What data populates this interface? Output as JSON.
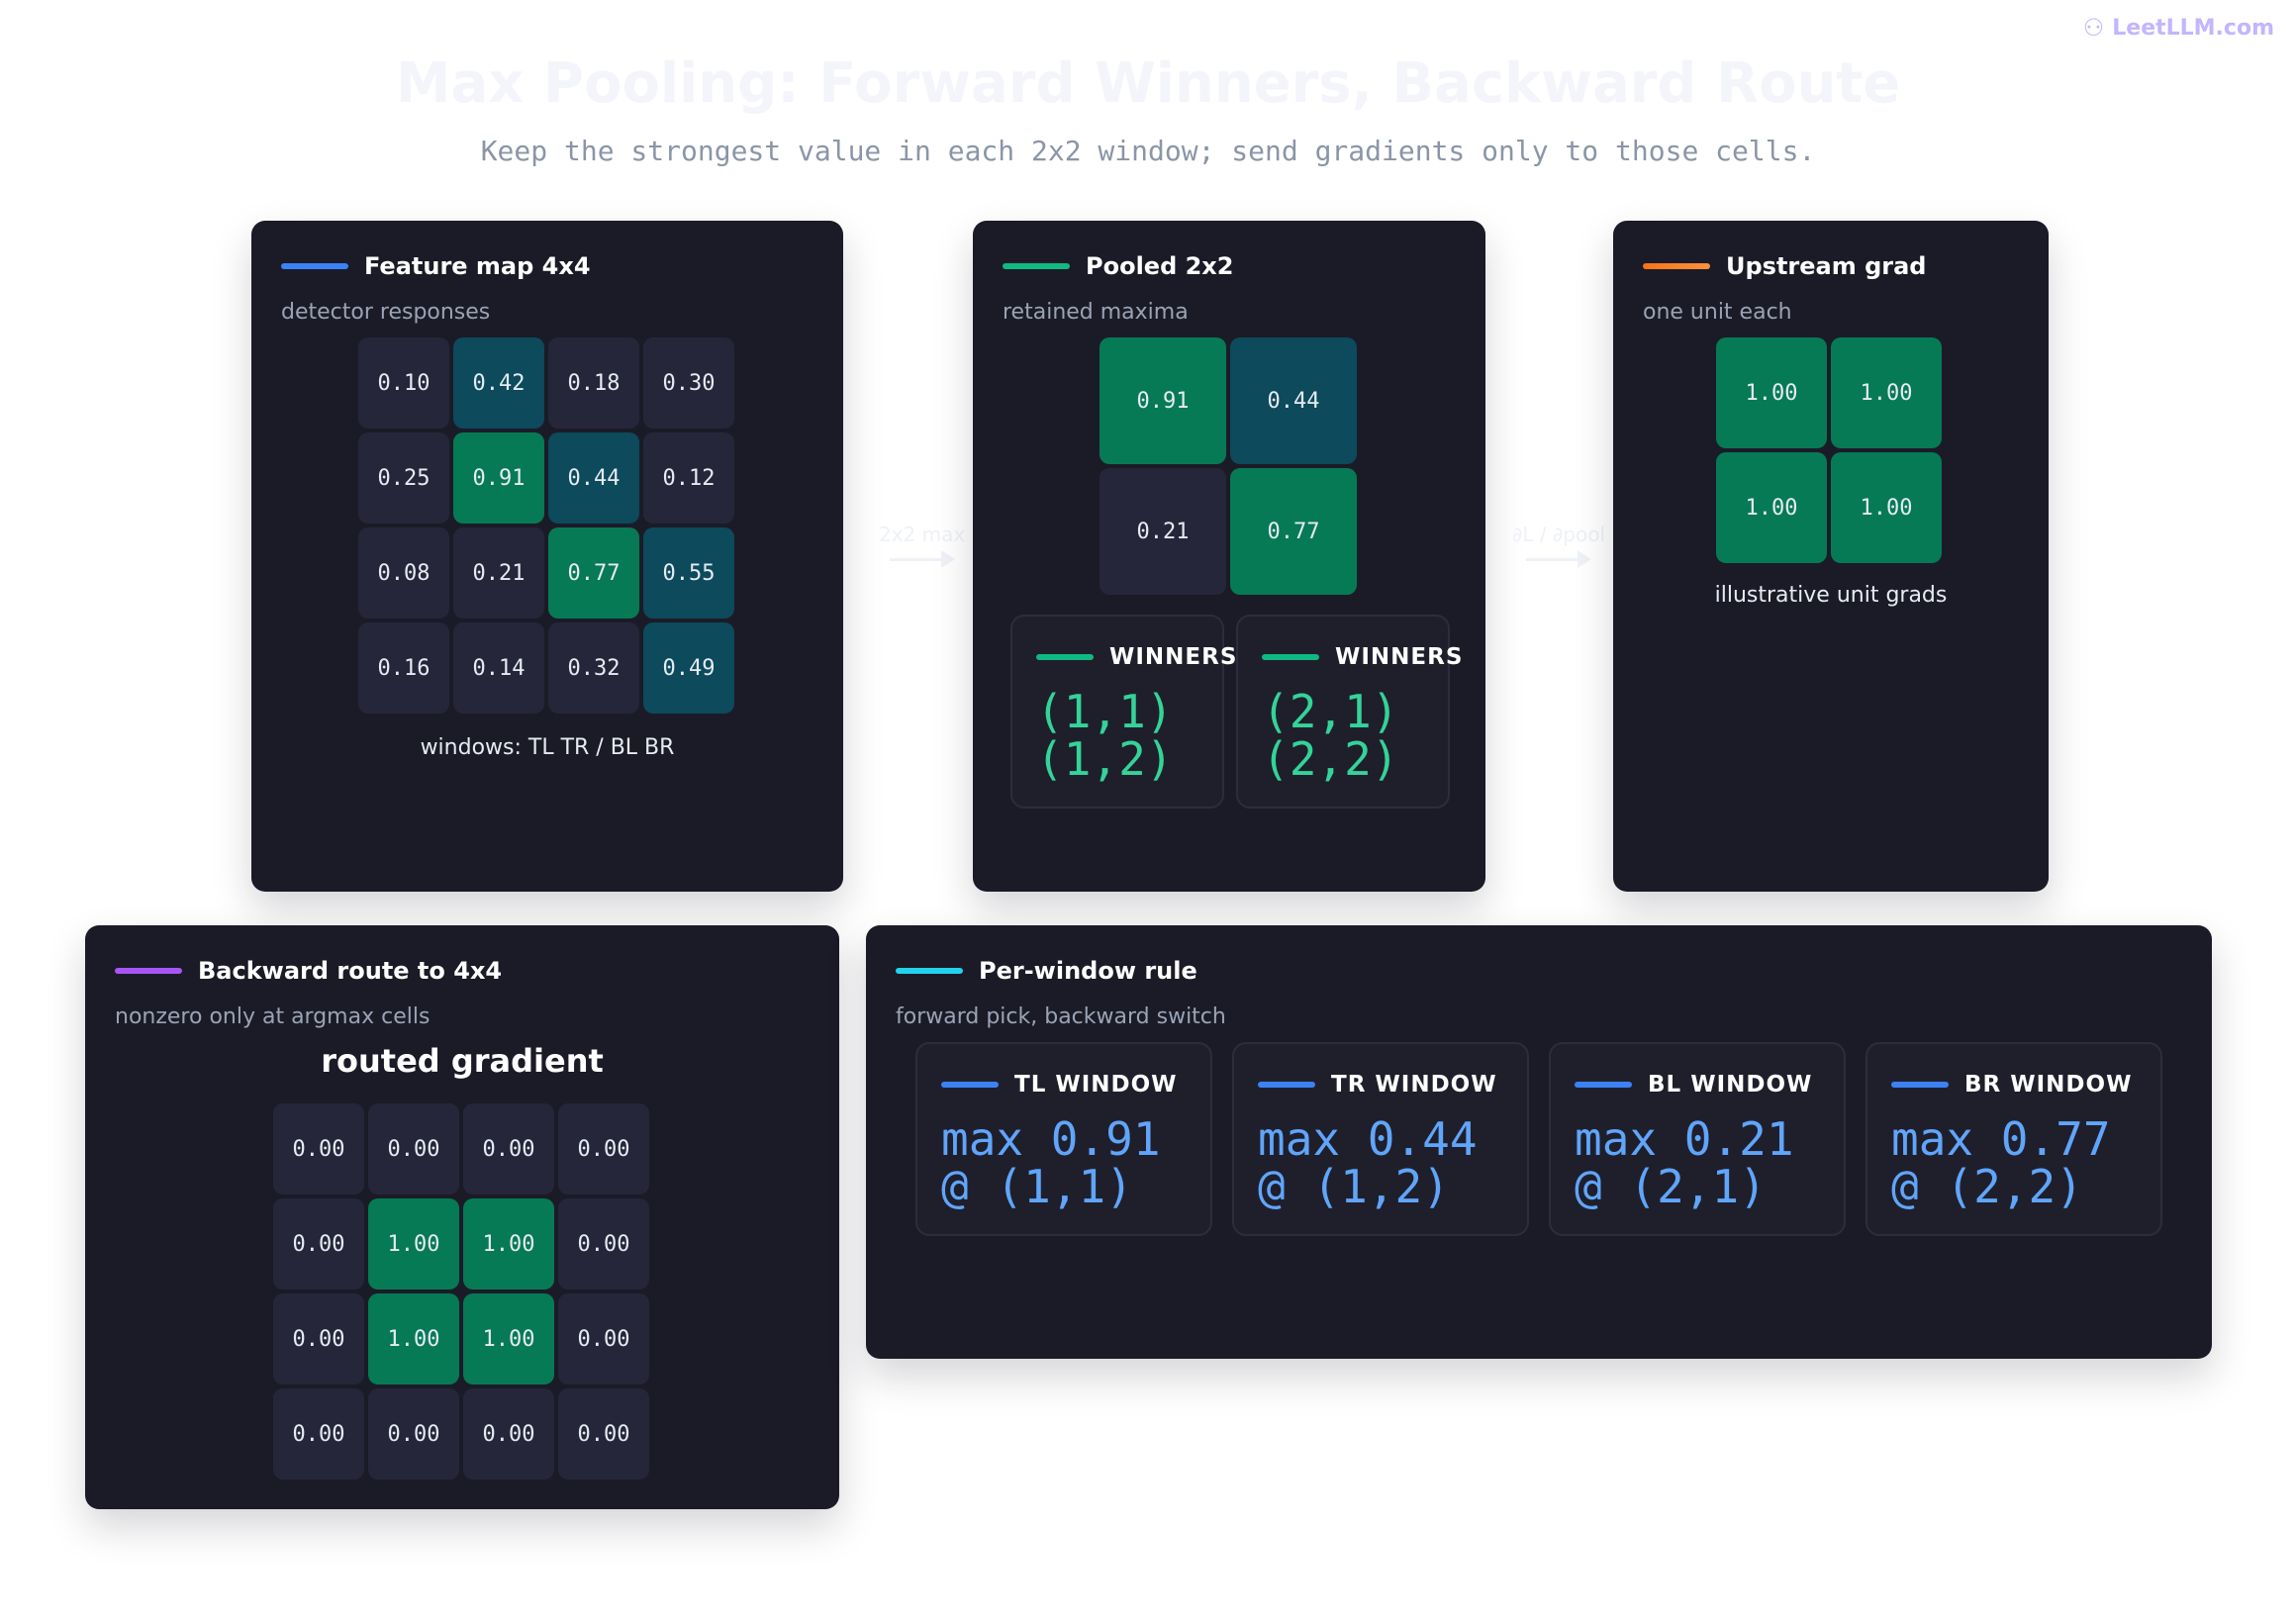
{
  "brand": {
    "name": "LeetLLM.com",
    "icon": "brain-icon"
  },
  "title": "Max Pooling: Forward Winners, Backward Route",
  "subtitle": "Keep the strongest value in each 2x2 window; send gradients only to those cells.",
  "colors": {
    "cell_dark": "#26263a",
    "cell_teal": "#0c4a5c",
    "cell_green": "#067a55",
    "accent_blue": "#3b82f6",
    "accent_green": "#10b981",
    "accent_orange": "#f97316",
    "accent_purple": "#a855f7",
    "accent_cyan": "#22d3ee"
  },
  "feature_map": {
    "title": "Feature map 4x4",
    "subtitle": "detector responses",
    "caption": "windows: TL TR / BL BR",
    "cells": [
      [
        {
          "v": "0.10",
          "s": "dark"
        },
        {
          "v": "0.42",
          "s": "teal"
        },
        {
          "v": "0.18",
          "s": "dark"
        },
        {
          "v": "0.30",
          "s": "dark"
        }
      ],
      [
        {
          "v": "0.25",
          "s": "dark"
        },
        {
          "v": "0.91",
          "s": "green"
        },
        {
          "v": "0.44",
          "s": "teal"
        },
        {
          "v": "0.12",
          "s": "dark"
        }
      ],
      [
        {
          "v": "0.08",
          "s": "dark"
        },
        {
          "v": "0.21",
          "s": "dark"
        },
        {
          "v": "0.77",
          "s": "green"
        },
        {
          "v": "0.55",
          "s": "teal"
        }
      ],
      [
        {
          "v": "0.16",
          "s": "dark"
        },
        {
          "v": "0.14",
          "s": "dark"
        },
        {
          "v": "0.32",
          "s": "dark"
        },
        {
          "v": "0.49",
          "s": "teal"
        }
      ]
    ]
  },
  "arrow1": {
    "label": "2x2 max"
  },
  "pooled": {
    "title": "Pooled 2x2",
    "subtitle": "retained maxima",
    "cells": [
      [
        {
          "v": "0.91",
          "s": "green"
        },
        {
          "v": "0.44",
          "s": "teal"
        }
      ],
      [
        {
          "v": "0.21",
          "s": "dark"
        },
        {
          "v": "0.77",
          "s": "green"
        }
      ]
    ],
    "winners": [
      {
        "title": "WINNERS",
        "line1": "(1,1)",
        "line2": "(1,2)"
      },
      {
        "title": "WINNERS",
        "line1": "(2,1)",
        "line2": "(2,2)"
      }
    ]
  },
  "arrow2": {
    "label": "∂L / ∂pool"
  },
  "upstream": {
    "title": "Upstream grad",
    "subtitle": "one unit each",
    "caption": "illustrative unit grads",
    "cells": [
      [
        {
          "v": "1.00",
          "s": "green"
        },
        {
          "v": "1.00",
          "s": "green"
        }
      ],
      [
        {
          "v": "1.00",
          "s": "green"
        },
        {
          "v": "1.00",
          "s": "green"
        }
      ]
    ]
  },
  "backward": {
    "title": "Backward route to 4x4",
    "subtitle": "nonzero only at argmax cells",
    "label": "routed gradient",
    "cells": [
      [
        {
          "v": "0.00",
          "s": "dark"
        },
        {
          "v": "0.00",
          "s": "dark"
        },
        {
          "v": "0.00",
          "s": "dark"
        },
        {
          "v": "0.00",
          "s": "dark"
        }
      ],
      [
        {
          "v": "0.00",
          "s": "dark"
        },
        {
          "v": "1.00",
          "s": "green"
        },
        {
          "v": "1.00",
          "s": "green"
        },
        {
          "v": "0.00",
          "s": "dark"
        }
      ],
      [
        {
          "v": "0.00",
          "s": "dark"
        },
        {
          "v": "1.00",
          "s": "green"
        },
        {
          "v": "1.00",
          "s": "green"
        },
        {
          "v": "0.00",
          "s": "dark"
        }
      ],
      [
        {
          "v": "0.00",
          "s": "dark"
        },
        {
          "v": "0.00",
          "s": "dark"
        },
        {
          "v": "0.00",
          "s": "dark"
        },
        {
          "v": "0.00",
          "s": "dark"
        }
      ]
    ]
  },
  "rule": {
    "title": "Per-window rule",
    "subtitle": "forward pick, backward switch",
    "windows": [
      {
        "title": "TL WINDOW",
        "line1": "max 0.91",
        "line2": "@ (1,1)"
      },
      {
        "title": "TR WINDOW",
        "line1": "max 0.44",
        "line2": "@ (1,2)"
      },
      {
        "title": "BL WINDOW",
        "line1": "max 0.21",
        "line2": "@ (2,1)"
      },
      {
        "title": "BR WINDOW",
        "line1": "max 0.77",
        "line2": "@ (2,2)"
      }
    ]
  }
}
